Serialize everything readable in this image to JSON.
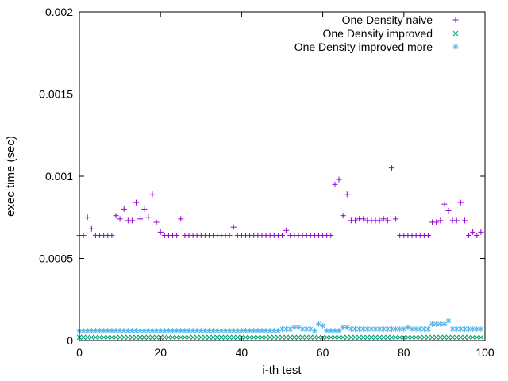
{
  "chart_data": {
    "type": "scatter",
    "title": "",
    "xlabel": "i-th test",
    "ylabel": "exec time (sec)",
    "xlim": [
      0,
      100
    ],
    "ylim": [
      0,
      0.002
    ],
    "x_ticks": [
      0,
      20,
      40,
      60,
      80,
      100
    ],
    "x_tick_labels": [
      "0",
      "20",
      "40",
      "60",
      "80",
      "100"
    ],
    "y_ticks": [
      0,
      0.0005,
      0.001,
      0.0015,
      0.002
    ],
    "y_tick_labels": [
      "0",
      "0.0005",
      "0.001",
      "0.0015",
      "0.002"
    ],
    "legend_position": "top-right",
    "series": [
      {
        "name": "One Density naive",
        "marker": "plus",
        "color": "#9400d3",
        "values": [
          0.00064,
          0.00064,
          0.00075,
          0.00068,
          0.00064,
          0.00064,
          0.00064,
          0.00064,
          0.00064,
          0.00076,
          0.00074,
          0.0008,
          0.00073,
          0.00073,
          0.00084,
          0.00074,
          0.0008,
          0.00075,
          0.00089,
          0.00072,
          0.00066,
          0.00064,
          0.00064,
          0.00064,
          0.00064,
          0.00074,
          0.00064,
          0.00064,
          0.00064,
          0.00064,
          0.00064,
          0.00064,
          0.00064,
          0.00064,
          0.00064,
          0.00064,
          0.00064,
          0.00064,
          0.00069,
          0.00064,
          0.00064,
          0.00064,
          0.00064,
          0.00064,
          0.00064,
          0.00064,
          0.00064,
          0.00064,
          0.00064,
          0.00064,
          0.00064,
          0.00067,
          0.00064,
          0.00064,
          0.00064,
          0.00064,
          0.00064,
          0.00064,
          0.00064,
          0.00064,
          0.00064,
          0.00064,
          0.00064,
          0.00095,
          0.00098,
          0.00076,
          0.00089,
          0.00073,
          0.00073,
          0.00074,
          0.00074,
          0.00073,
          0.00073,
          0.00073,
          0.00073,
          0.00074,
          0.00073,
          0.00105,
          0.00074,
          0.00064,
          0.00064,
          0.00064,
          0.00064,
          0.00064,
          0.00064,
          0.00064,
          0.00064,
          0.00072,
          0.00072,
          0.00073,
          0.00083,
          0.00079,
          0.00073,
          0.00073,
          0.00084,
          0.00073,
          0.00064,
          0.00066,
          0.00064,
          0.00066
        ]
      },
      {
        "name": "One Density improved",
        "marker": "x",
        "color": "#009e73",
        "values": [
          2e-05,
          2e-05,
          2e-05,
          2e-05,
          2e-05,
          2e-05,
          2e-05,
          2e-05,
          2e-05,
          2e-05,
          2e-05,
          2e-05,
          2e-05,
          2e-05,
          2e-05,
          2e-05,
          2e-05,
          2e-05,
          2e-05,
          2e-05,
          2e-05,
          2e-05,
          2e-05,
          2e-05,
          2e-05,
          2e-05,
          2e-05,
          2e-05,
          2e-05,
          2e-05,
          2e-05,
          2e-05,
          2e-05,
          2e-05,
          2e-05,
          2e-05,
          2e-05,
          2e-05,
          2e-05,
          2e-05,
          2e-05,
          2e-05,
          2e-05,
          2e-05,
          2e-05,
          2e-05,
          2e-05,
          2e-05,
          2e-05,
          2e-05,
          2e-05,
          2e-05,
          2e-05,
          2e-05,
          2e-05,
          2e-05,
          2e-05,
          2e-05,
          2e-05,
          2e-05,
          2e-05,
          2e-05,
          2e-05,
          2e-05,
          2e-05,
          2e-05,
          2e-05,
          2e-05,
          2e-05,
          2e-05,
          2e-05,
          2e-05,
          2e-05,
          2e-05,
          2e-05,
          2e-05,
          2e-05,
          2e-05,
          2e-05,
          2e-05,
          2e-05,
          2e-05,
          2e-05,
          2e-05,
          2e-05,
          2e-05,
          2e-05,
          2e-05,
          2e-05,
          2e-05,
          2e-05,
          2e-05,
          2e-05,
          2e-05,
          2e-05,
          2e-05,
          2e-05,
          2e-05,
          2e-05,
          2e-05
        ]
      },
      {
        "name": "One Density improved more",
        "marker": "star",
        "color": "#56b4e9",
        "values": [
          6e-05,
          6e-05,
          6e-05,
          6e-05,
          6e-05,
          6e-05,
          6e-05,
          6e-05,
          6e-05,
          6e-05,
          6e-05,
          6e-05,
          6e-05,
          6e-05,
          6e-05,
          6e-05,
          6e-05,
          6e-05,
          6e-05,
          6e-05,
          6e-05,
          6e-05,
          6e-05,
          6e-05,
          6e-05,
          6e-05,
          6e-05,
          6e-05,
          6e-05,
          6e-05,
          6e-05,
          6e-05,
          6e-05,
          6e-05,
          6e-05,
          6e-05,
          6e-05,
          6e-05,
          6e-05,
          6e-05,
          6e-05,
          6e-05,
          6e-05,
          6e-05,
          6e-05,
          6e-05,
          6e-05,
          6e-05,
          6e-05,
          6e-05,
          7e-05,
          7e-05,
          7e-05,
          8e-05,
          8e-05,
          7e-05,
          7e-05,
          7e-05,
          6e-05,
          0.0001,
          9e-05,
          6e-05,
          6e-05,
          6e-05,
          6e-05,
          8e-05,
          8e-05,
          7e-05,
          7e-05,
          7e-05,
          7e-05,
          7e-05,
          7e-05,
          7e-05,
          7e-05,
          7e-05,
          7e-05,
          7e-05,
          7e-05,
          7e-05,
          7e-05,
          8e-05,
          7e-05,
          7e-05,
          7e-05,
          7e-05,
          7e-05,
          0.0001,
          0.0001,
          0.0001,
          0.0001,
          0.00012,
          7e-05,
          7e-05,
          7e-05,
          7e-05,
          7e-05,
          7e-05,
          7e-05,
          7e-05
        ]
      }
    ]
  }
}
